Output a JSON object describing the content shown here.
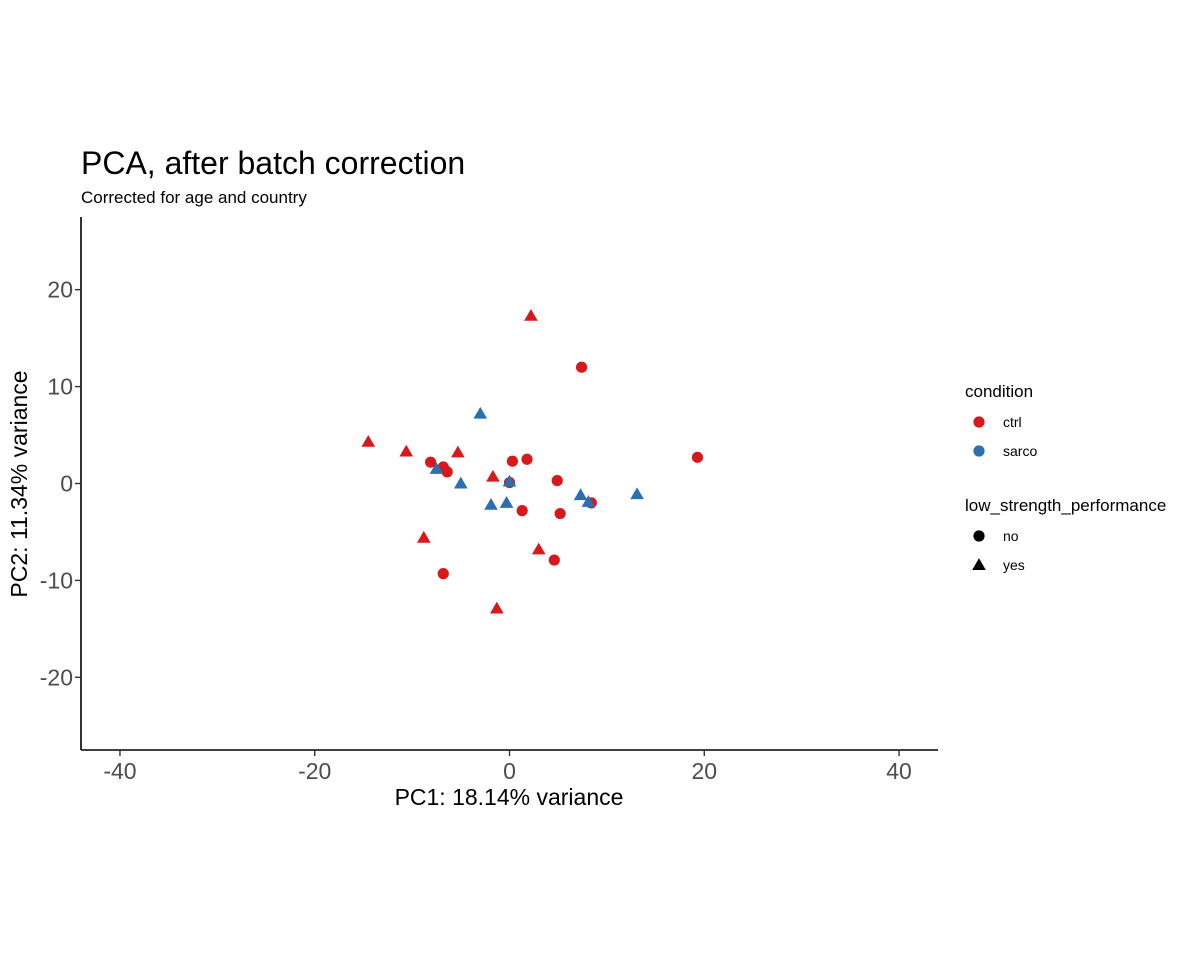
{
  "chart_data": {
    "type": "scatter",
    "title": "PCA, after batch correction",
    "subtitle": "Corrected for age and country",
    "xlabel": "PC1: 18.14% variance",
    "ylabel": "PC2: 11.34% variance",
    "xlim": [
      -44,
      44
    ],
    "ylim": [
      -27.5,
      27.5
    ],
    "x_ticks": [
      -40,
      -20,
      0,
      20,
      40
    ],
    "y_ticks": [
      -20,
      -10,
      0,
      10,
      20
    ],
    "grid": false,
    "legend_position": "right",
    "legends": [
      {
        "title": "condition",
        "entries": [
          {
            "label": "ctrl",
            "color": "#d7191c",
            "shape": "circle"
          },
          {
            "label": "sarco",
            "color": "#2c6fb0",
            "shape": "circle"
          }
        ]
      },
      {
        "title": "low_strength_performance",
        "entries": [
          {
            "label": "no",
            "color": "#000000",
            "shape": "circle"
          },
          {
            "label": "yes",
            "color": "#000000",
            "shape": "triangle"
          }
        ]
      }
    ],
    "colors": {
      "ctrl": "#d7191c",
      "sarco": "#2c6fb0"
    },
    "points": [
      {
        "x": 2.2,
        "y": 17.3,
        "condition": "ctrl",
        "low_strength_performance": "yes"
      },
      {
        "x": 7.4,
        "y": 12.0,
        "condition": "ctrl",
        "low_strength_performance": "no"
      },
      {
        "x": -14.5,
        "y": 4.3,
        "condition": "ctrl",
        "low_strength_performance": "yes"
      },
      {
        "x": -10.6,
        "y": 3.3,
        "condition": "ctrl",
        "low_strength_performance": "yes"
      },
      {
        "x": -5.3,
        "y": 3.2,
        "condition": "ctrl",
        "low_strength_performance": "yes"
      },
      {
        "x": -8.1,
        "y": 2.2,
        "condition": "ctrl",
        "low_strength_performance": "no"
      },
      {
        "x": -6.8,
        "y": 1.7,
        "condition": "ctrl",
        "low_strength_performance": "no"
      },
      {
        "x": -6.4,
        "y": 1.2,
        "condition": "ctrl",
        "low_strength_performance": "no"
      },
      {
        "x": -1.7,
        "y": 0.7,
        "condition": "ctrl",
        "low_strength_performance": "yes"
      },
      {
        "x": 0.3,
        "y": 2.3,
        "condition": "ctrl",
        "low_strength_performance": "no"
      },
      {
        "x": 1.8,
        "y": 2.5,
        "condition": "ctrl",
        "low_strength_performance": "no"
      },
      {
        "x": 0.0,
        "y": 0.1,
        "condition": "ctrl",
        "low_strength_performance": "no"
      },
      {
        "x": 4.9,
        "y": 0.3,
        "condition": "ctrl",
        "low_strength_performance": "no"
      },
      {
        "x": 19.3,
        "y": 2.7,
        "condition": "ctrl",
        "low_strength_performance": "no"
      },
      {
        "x": 8.4,
        "y": -2.0,
        "condition": "ctrl",
        "low_strength_performance": "no"
      },
      {
        "x": 1.3,
        "y": -2.8,
        "condition": "ctrl",
        "low_strength_performance": "no"
      },
      {
        "x": 5.2,
        "y": -3.1,
        "condition": "ctrl",
        "low_strength_performance": "no"
      },
      {
        "x": -8.8,
        "y": -5.6,
        "condition": "ctrl",
        "low_strength_performance": "yes"
      },
      {
        "x": 3.0,
        "y": -6.8,
        "condition": "ctrl",
        "low_strength_performance": "yes"
      },
      {
        "x": 4.6,
        "y": -7.9,
        "condition": "ctrl",
        "low_strength_performance": "no"
      },
      {
        "x": -6.8,
        "y": -9.3,
        "condition": "ctrl",
        "low_strength_performance": "no"
      },
      {
        "x": -1.3,
        "y": -12.9,
        "condition": "ctrl",
        "low_strength_performance": "yes"
      },
      {
        "x": -3.0,
        "y": 7.2,
        "condition": "sarco",
        "low_strength_performance": "yes"
      },
      {
        "x": -7.5,
        "y": 1.5,
        "condition": "sarco",
        "low_strength_performance": "yes"
      },
      {
        "x": -5.0,
        "y": 0.0,
        "condition": "sarco",
        "low_strength_performance": "yes"
      },
      {
        "x": 0.0,
        "y": 0.2,
        "condition": "sarco",
        "low_strength_performance": "yes"
      },
      {
        "x": -1.9,
        "y": -2.2,
        "condition": "sarco",
        "low_strength_performance": "yes"
      },
      {
        "x": -0.3,
        "y": -2.0,
        "condition": "sarco",
        "low_strength_performance": "yes"
      },
      {
        "x": 7.3,
        "y": -1.2,
        "condition": "sarco",
        "low_strength_performance": "yes"
      },
      {
        "x": 8.1,
        "y": -1.9,
        "condition": "sarco",
        "low_strength_performance": "yes"
      },
      {
        "x": 13.1,
        "y": -1.1,
        "condition": "sarco",
        "low_strength_performance": "yes"
      }
    ]
  }
}
